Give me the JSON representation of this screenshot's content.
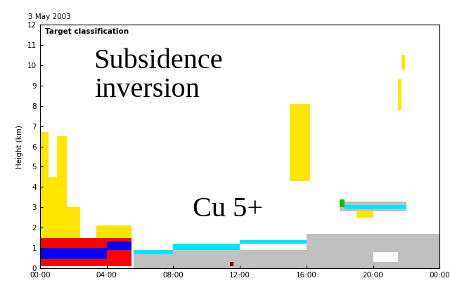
{
  "chart_data": {
    "type": "classification",
    "title": "3 May 2003",
    "y_label": "Height (km)",
    "annotations": [
      "Target classification",
      "Subsidence\ninversion",
      "Cu 5+"
    ],
    "xlim": [
      0,
      24
    ],
    "xticks": [
      {
        "value": 0,
        "label": "00:00"
      },
      {
        "value": 4,
        "label": "04:00"
      },
      {
        "value": 8,
        "label": "08:00"
      },
      {
        "value": 12,
        "label": "12:00"
      },
      {
        "value": 16,
        "label": "16:00"
      },
      {
        "value": 20,
        "label": "20:00"
      },
      {
        "value": 24,
        "label": "00:00"
      }
    ],
    "ylim": [
      0,
      12
    ],
    "yticks": [
      0,
      1,
      2,
      3,
      4,
      5,
      6,
      7,
      8,
      9,
      10,
      11,
      12
    ],
    "regions": [
      {
        "color": "#ffe600",
        "x": [
          0.0,
          0.5
        ],
        "y": [
          1.5,
          6.7
        ]
      },
      {
        "color": "#ffe600",
        "x": [
          0.5,
          1.0
        ],
        "y": [
          1.5,
          4.5
        ]
      },
      {
        "color": "#ffe600",
        "x": [
          1.0,
          1.6
        ],
        "y": [
          1.5,
          6.5
        ]
      },
      {
        "color": "#ffe600",
        "x": [
          1.6,
          2.4
        ],
        "y": [
          1.5,
          3.0
        ]
      },
      {
        "color": "#ffe600",
        "x": [
          3.4,
          5.5
        ],
        "y": [
          1.5,
          2.1
        ]
      },
      {
        "color": "#ff0000",
        "x": [
          0.0,
          5.5
        ],
        "y": [
          0.1,
          1.5
        ]
      },
      {
        "color": "#0000ff",
        "x": [
          0.0,
          4.0
        ],
        "y": [
          0.45,
          1.0
        ]
      },
      {
        "color": "#0000ff",
        "x": [
          4.0,
          5.5
        ],
        "y": [
          0.9,
          1.3
        ]
      },
      {
        "color": "#c0c0c0",
        "x": [
          5.6,
          16.0
        ],
        "y": [
          0.0,
          0.9
        ]
      },
      {
        "color": "#00e5ff",
        "x": [
          5.6,
          8.0
        ],
        "y": [
          0.7,
          0.9
        ]
      },
      {
        "color": "#00e5ff",
        "x": [
          8.0,
          12.0
        ],
        "y": [
          0.9,
          1.2
        ]
      },
      {
        "color": "#00e5ff",
        "x": [
          12.0,
          16.0
        ],
        "y": [
          1.2,
          1.4
        ]
      },
      {
        "color": "#c0c0c0",
        "x": [
          16.0,
          24.0
        ],
        "y": [
          0.0,
          1.7
        ]
      },
      {
        "color": "#ffffff",
        "x": [
          20.0,
          21.5
        ],
        "y": [
          0.3,
          0.8
        ]
      },
      {
        "color": "#8b0000",
        "x": [
          11.4,
          11.6
        ],
        "y": [
          0.1,
          0.3
        ]
      },
      {
        "color": "#ffe600",
        "x": [
          15.0,
          16.2
        ],
        "y": [
          4.3,
          8.1
        ]
      },
      {
        "color": "#ffe600",
        "x": [
          21.5,
          21.7
        ],
        "y": [
          7.8,
          9.3
        ]
      },
      {
        "color": "#ffe600",
        "x": [
          21.7,
          21.9
        ],
        "y": [
          9.8,
          10.5
        ]
      },
      {
        "color": "#c0c0c0",
        "x": [
          18.0,
          22.0
        ],
        "y": [
          2.8,
          3.3
        ]
      },
      {
        "color": "#00e5ff",
        "x": [
          18.3,
          22.0
        ],
        "y": [
          2.9,
          3.1
        ]
      },
      {
        "color": "#00c000",
        "x": [
          18.0,
          18.3
        ],
        "y": [
          3.0,
          3.4
        ]
      },
      {
        "color": "#ffe600",
        "x": [
          19.0,
          20.0
        ],
        "y": [
          2.5,
          2.85
        ]
      }
    ]
  }
}
